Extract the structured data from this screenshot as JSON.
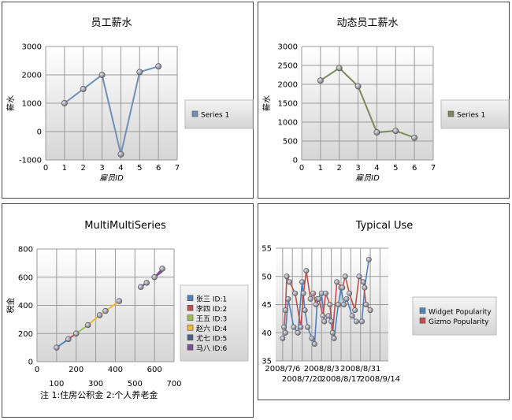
{
  "chart_data": [
    {
      "type": "line",
      "title": "员工薪水",
      "xlabel": "雇员ID",
      "ylabel": "薪水",
      "xlim": [
        0,
        7
      ],
      "ylim": [
        -1000,
        3000
      ],
      "xticks": [
        "0",
        "1",
        "2",
        "3",
        "4",
        "5",
        "6",
        "7"
      ],
      "yticks": [
        "-1000",
        "0",
        "1000",
        "2000",
        "3000"
      ],
      "grid": true,
      "legend_position": "right",
      "series": [
        {
          "name": "Series 1",
          "color": "#6f8fb8",
          "x": [
            1,
            2,
            3,
            4,
            5,
            6
          ],
          "y": [
            1000,
            1500,
            2000,
            -800,
            2100,
            2300
          ]
        }
      ]
    },
    {
      "type": "line",
      "title": "动态员工薪水",
      "xlabel": "雇员ID",
      "ylabel": "薪水",
      "xlim": [
        0,
        7
      ],
      "ylim": [
        0,
        3000
      ],
      "xticks": [
        "0",
        "1",
        "2",
        "3",
        "4",
        "5",
        "6",
        "7"
      ],
      "yticks": [
        "0",
        "500",
        "1000",
        "1500",
        "2000",
        "2500",
        "3000"
      ],
      "grid": true,
      "legend_position": "right",
      "series": [
        {
          "name": "Series 1",
          "color": "#7a8a5c",
          "x": [
            1,
            2,
            3,
            4,
            5,
            6
          ],
          "y": [
            2100,
            2430,
            1950,
            730,
            770,
            590
          ]
        }
      ]
    },
    {
      "type": "line",
      "title": "MultiMultiSeries",
      "xlabel": "",
      "ylabel": "税金",
      "xlim": [
        0,
        700
      ],
      "ylim": [
        0,
        800
      ],
      "xticks_top": [
        "0",
        "200",
        "400",
        "600"
      ],
      "xticks_bottom": [
        "100",
        "300",
        "500",
        "700"
      ],
      "yticks": [
        "0",
        "200",
        "400",
        "600",
        "800"
      ],
      "grid": true,
      "legend_position": "right",
      "note": "注 1:住房公积金  2:个人养老金",
      "series": [
        {
          "name": "张三 ID:1",
          "color": "#4f81bd",
          "x": [
            100,
            160
          ],
          "y": [
            100,
            160
          ]
        },
        {
          "name": "李四 ID:2",
          "color": "#c0504d",
          "x": [
            160,
            200
          ],
          "y": [
            160,
            200
          ]
        },
        {
          "name": "王五 ID:3",
          "color": "#9bbb59",
          "x": [
            200,
            260
          ],
          "y": [
            200,
            260
          ]
        },
        {
          "name": "赵六 ID:4",
          "color": "#f0b82e",
          "x": [
            260,
            320,
            350,
            420
          ],
          "y": [
            260,
            330,
            360,
            430
          ]
        },
        {
          "name": "尤七 ID:5",
          "color": "#4b5f8f",
          "x": [
            530,
            560
          ],
          "y": [
            530,
            560
          ]
        },
        {
          "name": "马八 ID:6",
          "color": "#7a4f8f",
          "x": [
            600,
            640
          ],
          "y": [
            600,
            640
          ]
        }
      ],
      "extra_points": [
        [
          100,
          100
        ],
        [
          160,
          160
        ],
        [
          200,
          200
        ],
        [
          260,
          260
        ],
        [
          320,
          330
        ],
        [
          350,
          360
        ],
        [
          420,
          430
        ],
        [
          530,
          530
        ],
        [
          560,
          560
        ],
        [
          600,
          600
        ],
        [
          640,
          660
        ]
      ]
    },
    {
      "type": "line",
      "title": "Typical Use",
      "xlabel": "",
      "ylabel": "",
      "xlim": [
        "2008/7/1",
        "2008/9/20"
      ],
      "ylim": [
        35,
        55
      ],
      "yticks": [
        "35",
        "40",
        "45",
        "50",
        "55"
      ],
      "xticks_top": [
        "2008/7/6",
        "2008/8/3",
        "2008/8/31"
      ],
      "xticks_bottom": [
        "2008/7/20",
        "2008/8/17",
        "2008/9/14"
      ],
      "grid": true,
      "legend_position": "right",
      "series": [
        {
          "name": "Widget Popularity",
          "color": "#4f81bd",
          "x": [
            "2008/7/6",
            "2008/7/8",
            "2008/7/10",
            "2008/7/14",
            "2008/7/17",
            "2008/7/20",
            "2008/7/22",
            "2008/7/24",
            "2008/7/27",
            "2008/7/29",
            "2008/7/31",
            "2008/8/3",
            "2008/8/5",
            "2008/8/8",
            "2008/8/10",
            "2008/8/12",
            "2008/8/15",
            "2008/8/17",
            "2008/8/19",
            "2008/8/21",
            "2008/8/25",
            "2008/8/28",
            "2008/9/1",
            "2008/9/3",
            "2008/9/6"
          ],
          "y": [
            39,
            40,
            46,
            41,
            40,
            49,
            44,
            41,
            39,
            38,
            46,
            47,
            42,
            43,
            42,
            39,
            45,
            48,
            45,
            46,
            43,
            42,
            42,
            48,
            53
          ]
        },
        {
          "name": "Gizmo Popularity",
          "color": "#c0504d",
          "x": [
            "2008/7/7",
            "2008/7/8",
            "2008/7/9",
            "2008/7/11",
            "2008/7/15",
            "2008/7/19",
            "2008/7/21",
            "2008/7/23",
            "2008/7/26",
            "2008/7/28",
            "2008/7/30",
            "2008/8/1",
            "2008/8/4",
            "2008/8/6",
            "2008/8/9",
            "2008/8/11",
            "2008/8/14",
            "2008/8/18",
            "2008/8/20",
            "2008/8/23",
            "2008/8/27",
            "2008/8/30",
            "2008/9/2",
            "2008/9/4",
            "2008/9/7"
          ],
          "y": [
            41,
            44,
            50,
            49,
            47,
            41,
            47,
            51,
            46,
            47,
            45,
            46,
            43,
            47,
            45,
            40,
            49,
            48,
            50,
            47,
            44,
            50,
            49,
            45,
            44
          ]
        }
      ]
    }
  ]
}
